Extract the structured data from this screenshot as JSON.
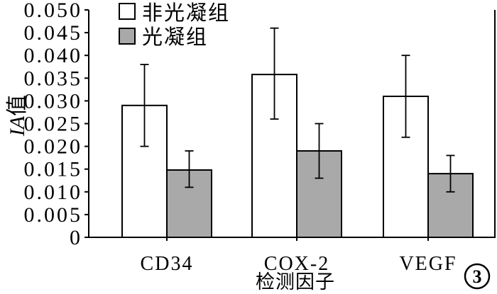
{
  "chart_data": {
    "type": "bar",
    "categories": [
      "CD34",
      "COX-2",
      "VEGF"
    ],
    "series": [
      {
        "name": "非光凝组",
        "values": [
          0.029,
          0.0358,
          0.031
        ],
        "error_low": [
          0.02,
          0.026,
          0.022
        ],
        "error_high": [
          0.038,
          0.046,
          0.04
        ],
        "color": "#ffffff"
      },
      {
        "name": "光凝组",
        "values": [
          0.0148,
          0.019,
          0.014
        ],
        "error_low": [
          0.011,
          0.013,
          0.01
        ],
        "error_high": [
          0.019,
          0.025,
          0.018
        ],
        "color": "#a9a9a9"
      }
    ],
    "xlabel": "检测因子",
    "ylabel": {
      "italic": "IA",
      "text": "值"
    },
    "ylim": [
      0,
      0.05
    ],
    "yticks": [
      "0",
      "0.005",
      "0.010",
      "0.015",
      "0.020",
      "0.025",
      "0.030",
      "0.035",
      "0.040",
      "0.045",
      "0.050"
    ],
    "grid": false,
    "legend": "top-left",
    "error_bars": true
  },
  "panel_label": "3"
}
